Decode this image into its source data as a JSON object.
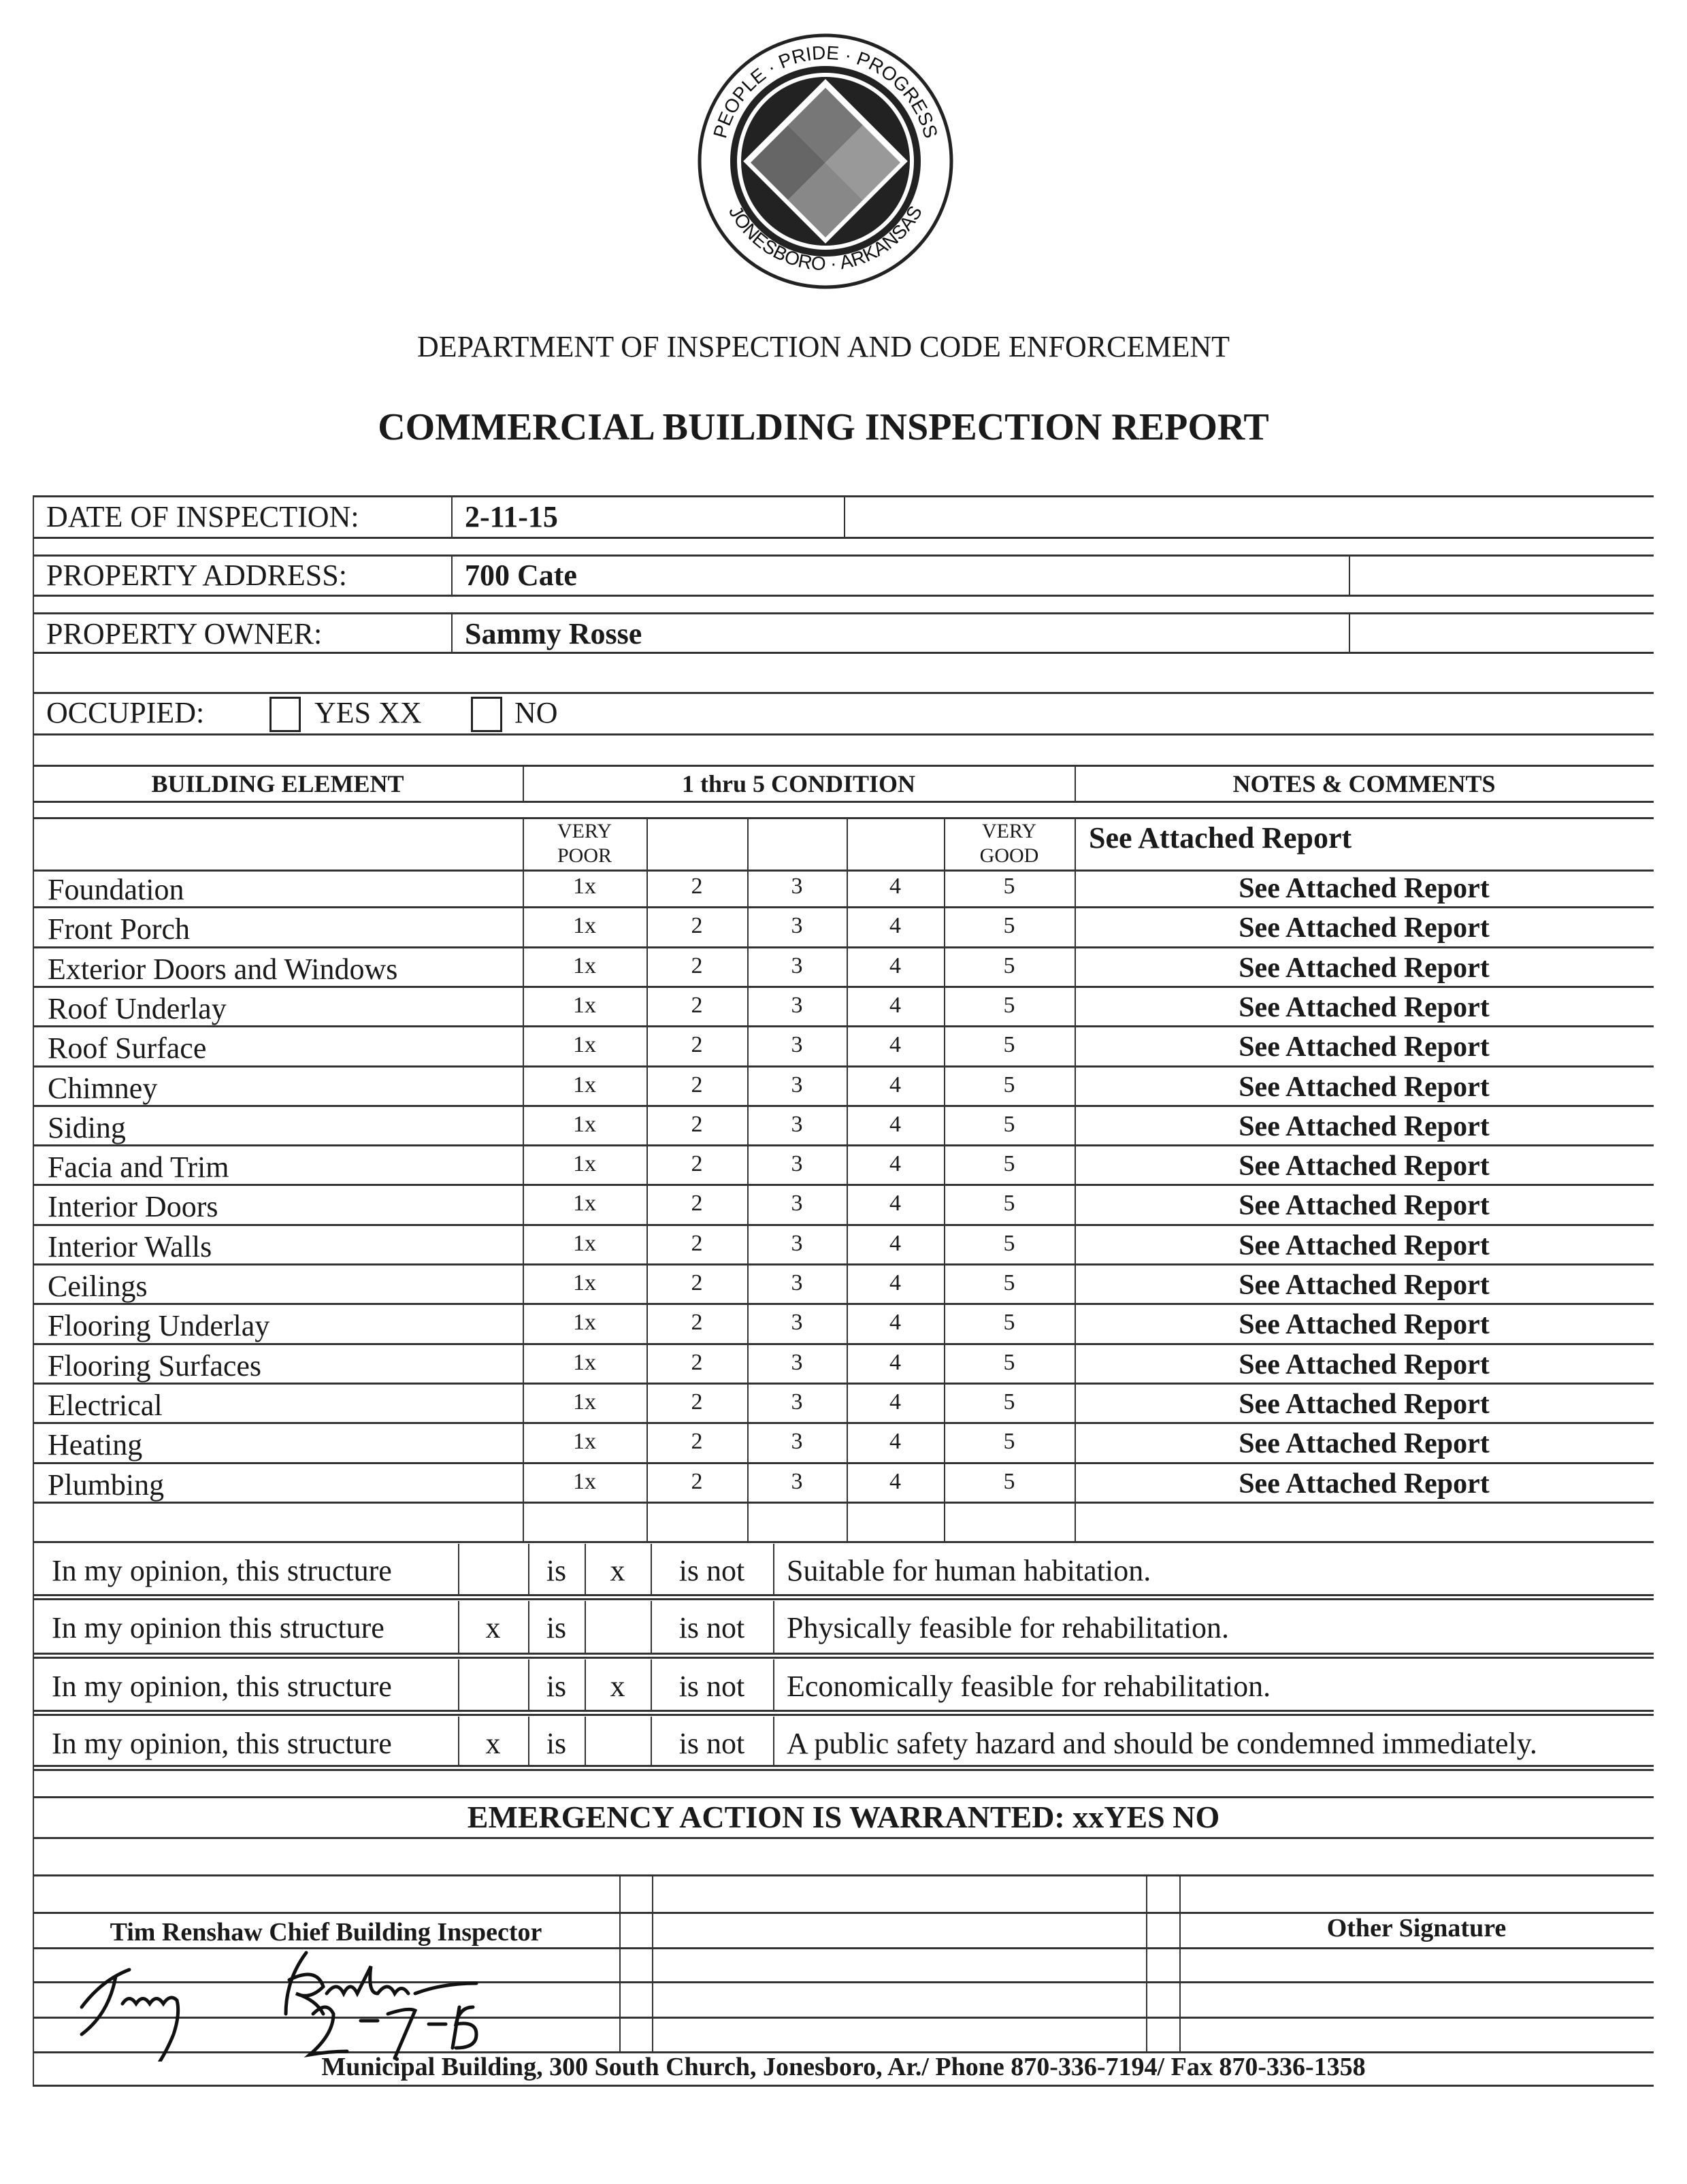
{
  "seal": {
    "text_top": "PEOPLE · PRIDE · PROGRESS",
    "text_bottom": "JONESBORO · ARKANSAS"
  },
  "department": "DEPARTMENT OF INSPECTION AND CODE ENFORCEMENT",
  "title": "COMMERCIAL BUILDING INSPECTION REPORT",
  "info": {
    "date_label": "DATE OF INSPECTION:",
    "date_value": "2-11-15",
    "address_label": "PROPERTY ADDRESS:",
    "address_value": "700 Cate",
    "owner_label": "PROPERTY OWNER:",
    "owner_value": "Sammy Rosse",
    "occupied_label": "OCCUPIED:",
    "occupied_yes": "YES XX",
    "occupied_no": "NO"
  },
  "table": {
    "headers": [
      "BUILDING ELEMENT",
      "1 thru 5  CONDITION",
      "NOTES & COMMENTS"
    ],
    "very_poor": [
      "VERY",
      "POOR"
    ],
    "very_good": [
      "VERY",
      "GOOD"
    ],
    "header_note": "See Attached Report",
    "rows": [
      {
        "element": "Foundation",
        "ratings": [
          "1x",
          "2",
          "3",
          "4",
          "5"
        ],
        "note": "See Attached Report"
      },
      {
        "element": "Front Porch",
        "ratings": [
          "1x",
          "2",
          "3",
          "4",
          "5"
        ],
        "note": "See Attached Report"
      },
      {
        "element": "Exterior Doors and Windows",
        "ratings": [
          "1x",
          "2",
          "3",
          "4",
          "5"
        ],
        "note": "See Attached Report"
      },
      {
        "element": "Roof Underlay",
        "ratings": [
          "1x",
          "2",
          "3",
          "4",
          "5"
        ],
        "note": "See Attached Report"
      },
      {
        "element": "Roof Surface",
        "ratings": [
          "1x",
          "2",
          "3",
          "4",
          "5"
        ],
        "note": "See Attached Report"
      },
      {
        "element": "Chimney",
        "ratings": [
          "1x",
          "2",
          "3",
          "4",
          "5"
        ],
        "note": "See Attached Report"
      },
      {
        "element": "Siding",
        "ratings": [
          "1x",
          "2",
          "3",
          "4",
          "5"
        ],
        "note": "See Attached Report"
      },
      {
        "element": "Facia and Trim",
        "ratings": [
          "1x",
          "2",
          "3",
          "4",
          "5"
        ],
        "note": "See Attached Report"
      },
      {
        "element": "Interior Doors",
        "ratings": [
          "1x",
          "2",
          "3",
          "4",
          "5"
        ],
        "note": "See Attached Report"
      },
      {
        "element": "Interior Walls",
        "ratings": [
          "1x",
          "2",
          "3",
          "4",
          "5"
        ],
        "note": "See Attached Report"
      },
      {
        "element": "Ceilings",
        "ratings": [
          "1x",
          "2",
          "3",
          "4",
          "5"
        ],
        "note": "See Attached Report"
      },
      {
        "element": "Flooring Underlay",
        "ratings": [
          "1x",
          "2",
          "3",
          "4",
          "5"
        ],
        "note": "See Attached Report"
      },
      {
        "element": "Flooring Surfaces",
        "ratings": [
          "1x",
          "2",
          "3",
          "4",
          "5"
        ],
        "note": "See Attached Report"
      },
      {
        "element": "Electrical",
        "ratings": [
          "1x",
          "2",
          "3",
          "4",
          "5"
        ],
        "note": "See Attached Report"
      },
      {
        "element": "Heating",
        "ratings": [
          "1x",
          "2",
          "3",
          "4",
          "5"
        ],
        "note": "See Attached Report"
      },
      {
        "element": "Plumbing",
        "ratings": [
          "1x",
          "2",
          "3",
          "4",
          "5"
        ],
        "note": "See Attached Report"
      }
    ]
  },
  "opinions": [
    {
      "lead": "In my opinion, this structure",
      "is_mark": "",
      "is": "is",
      "isnot_mark": "x",
      "is_not": "is not",
      "statement": "Suitable for human habitation."
    },
    {
      "lead": "In my opinion this structure",
      "is_mark": "x",
      "is": "is",
      "isnot_mark": "",
      "is_not": "is not",
      "statement": "Physically feasible for rehabilitation."
    },
    {
      "lead": "In my opinion, this structure",
      "is_mark": "",
      "is": "is",
      "isnot_mark": "x",
      "is_not": "is not",
      "statement": "Economically feasible for rehabilitation."
    },
    {
      "lead": "In my opinion, this structure",
      "is_mark": "x",
      "is": "is",
      "isnot_mark": "",
      "is_not": "is not",
      "statement": "A public safety hazard and should be condemned  immediately."
    }
  ],
  "emergency": "EMERGENCY ACTION IS WARRANTED:  xxYES     NO",
  "signatures": {
    "inspector": "Tim Renshaw Chief  Building Inspector",
    "other": "Other Signature",
    "handwritten_signature": "Tim Renshaw",
    "handwritten_date": "2-17-15"
  },
  "footer": "Municipal Building, 300 South Church, Jonesboro, Ar./ Phone 870-336-7194/ Fax 870-336-1358"
}
